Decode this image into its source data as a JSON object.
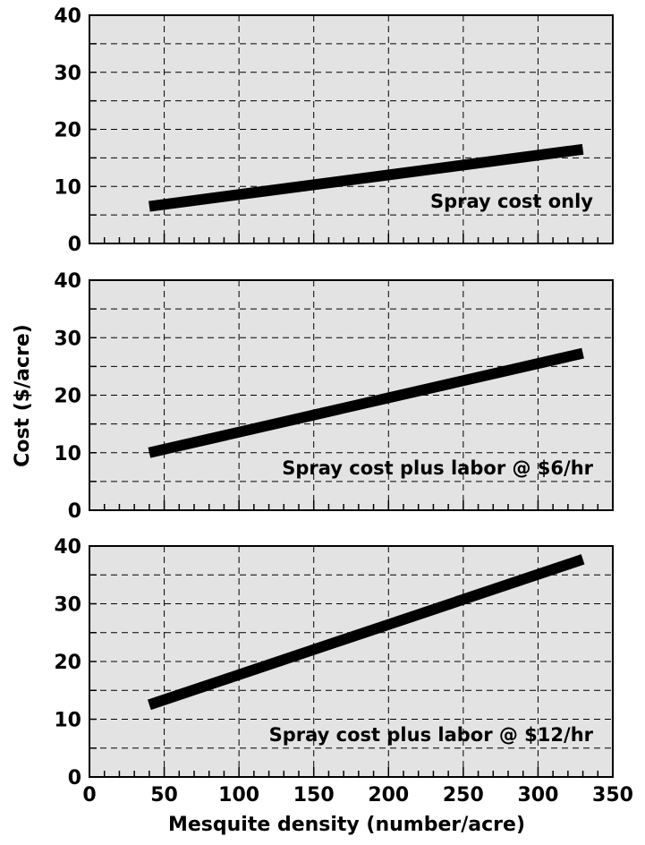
{
  "chart_data": [
    {
      "type": "line",
      "annotation": "Spray cost only",
      "ylim": [
        0,
        40
      ],
      "y_ticks": [
        "0",
        "10",
        "20",
        "30",
        "40"
      ],
      "series": [
        {
          "x": [
            40,
            330
          ],
          "y": [
            6.5,
            16.5
          ]
        }
      ]
    },
    {
      "type": "line",
      "annotation": "Spray cost plus labor @ $6/hr",
      "ylim": [
        0,
        40
      ],
      "y_ticks": [
        "0",
        "10",
        "20",
        "30",
        "40"
      ],
      "series": [
        {
          "x": [
            40,
            330
          ],
          "y": [
            10,
            27.3
          ]
        }
      ]
    },
    {
      "type": "line",
      "annotation": "Spray cost plus labor @ $12/hr",
      "ylim": [
        0,
        40
      ],
      "y_ticks": [
        "0",
        "10",
        "20",
        "30",
        "40"
      ],
      "series": [
        {
          "x": [
            40,
            330
          ],
          "y": [
            12.5,
            37.7
          ]
        }
      ]
    }
  ],
  "x_axis": {
    "label": "Mesquite density (number/acre)",
    "range": [
      0,
      350
    ],
    "ticks": [
      "0",
      "50",
      "100",
      "150",
      "200",
      "250",
      "300",
      "350"
    ]
  },
  "y_axis": {
    "label": "Cost ($/acre)"
  },
  "style": {
    "plot_background": "#e3e3e3",
    "line_color": "#000000",
    "grid_color": "#000000",
    "grid_style": "dashed",
    "grid": true
  }
}
